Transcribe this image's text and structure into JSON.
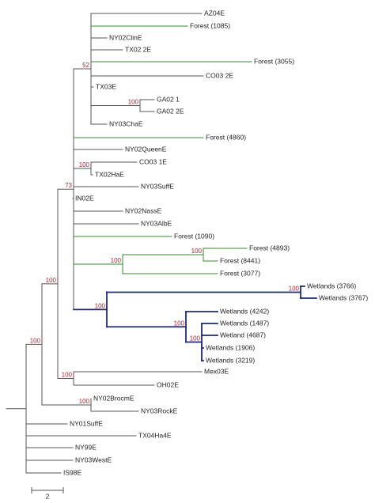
{
  "colors": {
    "default": "#555555",
    "forest": "#2e8b2e",
    "wetlands": "#1f2a7a",
    "support": "#b0232a"
  },
  "leaves": [
    {
      "id": "AZ04E",
      "label": "AZ04E",
      "color": "default"
    },
    {
      "id": "Forest1085",
      "label": "Forest (1085)",
      "color": "forest"
    },
    {
      "id": "NY02ClinE",
      "label": "NY02ClinE",
      "color": "default"
    },
    {
      "id": "TX022E",
      "label": "TX02 2E",
      "color": "default"
    },
    {
      "id": "Forest3055",
      "label": "Forest (3055)",
      "color": "forest"
    },
    {
      "id": "CO032E",
      "label": "CO03 2E",
      "color": "default"
    },
    {
      "id": "TX03E",
      "label": "TX03E",
      "color": "default"
    },
    {
      "id": "GA021",
      "label": "GA02 1",
      "color": "default"
    },
    {
      "id": "GA022E",
      "label": "GA02 2E",
      "color": "default"
    },
    {
      "id": "NY03ChaE",
      "label": "NY03ChaE",
      "color": "default"
    },
    {
      "id": "Forest4860",
      "label": "Forest (4860)",
      "color": "forest"
    },
    {
      "id": "NY02QueenE",
      "label": "NY02QueenE",
      "color": "default"
    },
    {
      "id": "CO031E",
      "label": "CO03 1E",
      "color": "default"
    },
    {
      "id": "TX02HaE",
      "label": "TX02HaE",
      "color": "default"
    },
    {
      "id": "NY03SuffE",
      "label": "NY03SuffE",
      "color": "default"
    },
    {
      "id": "IN02E",
      "label": "IN02E",
      "color": "default"
    },
    {
      "id": "NY02NassE",
      "label": "NY02NassE",
      "color": "default"
    },
    {
      "id": "NY03AlbE",
      "label": "NY03AlbE",
      "color": "default"
    },
    {
      "id": "Forest1090",
      "label": "Forest (1090)",
      "color": "forest"
    },
    {
      "id": "Forest4893",
      "label": "Forest (4893)",
      "color": "forest"
    },
    {
      "id": "Forest8441",
      "label": "Forest (8441)",
      "color": "forest"
    },
    {
      "id": "Forest3077",
      "label": "Forest (3077)",
      "color": "forest"
    },
    {
      "id": "Wetlands3766",
      "label": "Wetlands (3766)",
      "color": "wetlands"
    },
    {
      "id": "Wetlands3767",
      "label": "Wetlands (3767)",
      "color": "wetlands"
    },
    {
      "id": "Wetlands4242",
      "label": "Wetlands (4242)",
      "color": "wetlands"
    },
    {
      "id": "Wetlands1487",
      "label": "Wetlands (1487)",
      "color": "wetlands"
    },
    {
      "id": "Wetland4687",
      "label": "Wetland (4687)",
      "color": "wetlands"
    },
    {
      "id": "Wetlands1906",
      "label": "Wetlands (1906)",
      "color": "wetlands"
    },
    {
      "id": "Wetlands3219",
      "label": "Wetlands (3219)",
      "color": "wetlands"
    },
    {
      "id": "Mex03E",
      "label": "Mex03E",
      "color": "default"
    },
    {
      "id": "OH02E",
      "label": "OH02E",
      "color": "default"
    },
    {
      "id": "NY02BrocmE",
      "label": "NY02BrocmE",
      "color": "default"
    },
    {
      "id": "NY03RockE",
      "label": "NY03RockE",
      "color": "default"
    },
    {
      "id": "NY01SuffE",
      "label": "NY01SuffE",
      "color": "default"
    },
    {
      "id": "TX04Ha4E",
      "label": "TX04Ha4E",
      "color": "default"
    },
    {
      "id": "NY99E",
      "label": "NY99E",
      "color": "default"
    },
    {
      "id": "NY03WestE",
      "label": "NY03WestE",
      "color": "default"
    },
    {
      "id": "IS98E",
      "label": "IS98E",
      "color": "default"
    }
  ],
  "support_values": [
    {
      "node": "n52",
      "value": "52"
    },
    {
      "node": "nGA",
      "value": "100"
    },
    {
      "node": "nCO",
      "value": "100"
    },
    {
      "node": "n73",
      "value": "73"
    },
    {
      "node": "nForestA",
      "value": "100"
    },
    {
      "node": "nForestB",
      "value": "100"
    },
    {
      "node": "nWetRoot",
      "value": "100"
    },
    {
      "node": "nWet3766",
      "value": "100"
    },
    {
      "node": "nWetB",
      "value": "100"
    },
    {
      "node": "nWetC",
      "value": "100"
    },
    {
      "node": "nBig",
      "value": "100"
    },
    {
      "node": "nMex",
      "value": "100"
    },
    {
      "node": "nBrocm",
      "value": "100"
    },
    {
      "node": "nOuter",
      "value": "100"
    }
  ],
  "scale_bar": {
    "label": "2"
  }
}
